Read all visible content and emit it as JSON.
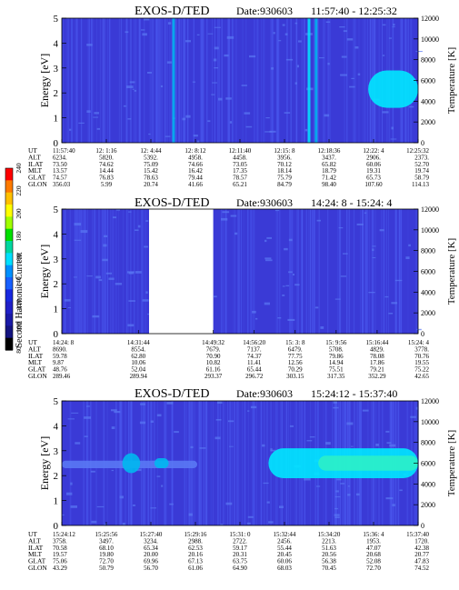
{
  "colorbar": {
    "label": "Second Harmonic Current",
    "ticks": [
      "240",
      "220",
      "200",
      "180",
      "160",
      "140",
      "120",
      "100",
      "80"
    ],
    "range": [
      80,
      240
    ],
    "colors": [
      "#ff0000",
      "#ff7a00",
      "#ffc000",
      "#ffff00",
      "#a0ff00",
      "#00e000",
      "#00d8a0",
      "#00e0ff",
      "#0090ff",
      "#1860ff",
      "#1828e0",
      "#2020c8",
      "#1a1aa8",
      "#141480",
      "#000000"
    ]
  },
  "palette": {
    "background": "#3a3ad6",
    "stripe": "#4a58ee",
    "weak": "#5a78f4",
    "medium": "#00b8f0",
    "strong": "#00e8ff",
    "core": "#2cf0c8",
    "gap": "#ffffff"
  },
  "row_labels": [
    "UT",
    "ALT",
    "ILAT",
    "MLT",
    "GLAT",
    "GLON"
  ],
  "chart_data": [
    {
      "type": "heatmap",
      "title": "EXOS-D/TED",
      "date_text": "Date:930603",
      "time_range_text": "11:57:40 - 12:25:32",
      "ylabel": "Energy [eV]",
      "ylim": [
        0,
        5
      ],
      "yticks": [
        "0",
        "1",
        "2",
        "3",
        "4",
        "5"
      ],
      "y2label": "Temperature [K]",
      "y2lim": [
        0,
        12000
      ],
      "y2ticks": [
        "0",
        "2000",
        "4000",
        "6000",
        "8000",
        "10000",
        "12000"
      ],
      "gap": null,
      "features": [
        {
          "kind": "spike",
          "x": 0.31,
          "strength": "medium"
        },
        {
          "kind": "spike",
          "x": 0.69,
          "strength": "strong"
        },
        {
          "kind": "spike",
          "x": 0.71,
          "strength": "medium"
        },
        {
          "kind": "blob",
          "x0": 0.86,
          "x1": 1.0,
          "e0": 1.4,
          "e1": 2.9,
          "strength": "strong"
        }
      ],
      "columns": [
        {
          "UT": "11:57:40",
          "ALT": "6234.",
          "ILAT": "73.50",
          "MLT": "13.57",
          "GLAT": "74.57",
          "GLON": "356.03"
        },
        {
          "UT": "12: 1:16",
          "ALT": "5820.",
          "ILAT": "74.62",
          "MLT": "14.44",
          "GLAT": "76.83",
          "GLON": "5.99"
        },
        {
          "UT": "12: 4:44",
          "ALT": "5392.",
          "ILAT": "75.09",
          "MLT": "15.42",
          "GLAT": "78.63",
          "GLON": "20.74"
        },
        {
          "UT": "12: 8:12",
          "ALT": "4958.",
          "ILAT": "74.66",
          "MLT": "16.42",
          "GLAT": "79.44",
          "GLON": "41.66"
        },
        {
          "UT": "12:11:40",
          "ALT": "4458.",
          "ILAT": "73.05",
          "MLT": "17.35",
          "GLAT": "78.57",
          "GLON": "65.21"
        },
        {
          "UT": "12:15: 8",
          "ALT": "3956.",
          "ILAT": "70.12",
          "MLT": "18.14",
          "GLAT": "75.79",
          "GLON": "84.79"
        },
        {
          "UT": "12:18:36",
          "ALT": "3437.",
          "ILAT": "65.82",
          "MLT": "18.79",
          "GLAT": "71.42",
          "GLON": "98.40"
        },
        {
          "UT": "12:22: 4",
          "ALT": "2906.",
          "ILAT": "60.06",
          "MLT": "19.31",
          "GLAT": "65.73",
          "GLON": "107.60"
        },
        {
          "UT": "12:25:32",
          "ALT": "2373.",
          "ILAT": "52.70",
          "MLT": "19.74",
          "GLAT": "58.79",
          "GLON": "114.13"
        }
      ]
    },
    {
      "type": "heatmap",
      "title": "EXOS-D/TED",
      "date_text": "Date:930603",
      "time_range_text": "14:24: 8 - 15:24: 4",
      "ylabel": "Energy [eV]",
      "ylim": [
        0,
        5
      ],
      "yticks": [
        "0",
        "1",
        "2",
        "3",
        "4",
        "5"
      ],
      "y2label": "Temperature [K]",
      "y2lim": [
        0,
        12000
      ],
      "y2ticks": [
        "0",
        "2000",
        "4000",
        "6000",
        "8000",
        "10000",
        "12000"
      ],
      "gap": {
        "x0": 0.245,
        "x1": 0.425
      },
      "features": [],
      "columns": [
        {
          "UT": "14:24: 8",
          "ALT": "8690.",
          "ILAT": "59.78",
          "MLT": "9.87",
          "GLAT": "48.76",
          "GLON": "289.46"
        },
        {
          "UT": "14:31:44",
          "ALT": "8554.",
          "ILAT": "62.80",
          "MLT": "10.06",
          "GLAT": "52.04",
          "GLON": "289.94"
        },
        {
          "UT": "14:49:32",
          "ALT": "7679.",
          "ILAT": "70.90",
          "MLT": "10.82",
          "GLAT": "61.16",
          "GLON": "293.37"
        },
        {
          "UT": "14:56:20",
          "ALT": "7137.",
          "ILAT": "74.37",
          "MLT": "11.41",
          "GLAT": "65.44",
          "GLON": "296.72"
        },
        {
          "UT": "15: 3: 8",
          "ALT": "6479.",
          "ILAT": "77.75",
          "MLT": "12.56",
          "GLAT": "70.29",
          "GLON": "303.15"
        },
        {
          "UT": "15: 9:56",
          "ALT": "5708.",
          "ILAT": "79.86",
          "MLT": "14.94",
          "GLAT": "75.51",
          "GLON": "317.35"
        },
        {
          "UT": "15:16:44",
          "ALT": "4829.",
          "ILAT": "78.08",
          "MLT": "17.86",
          "GLAT": "79.21",
          "GLON": "352.29"
        },
        {
          "UT": "15:24: 4",
          "ALT": "3778.",
          "ILAT": "70.76",
          "MLT": "19.55",
          "GLAT": "75.22",
          "GLON": "42.65"
        }
      ]
    },
    {
      "type": "heatmap",
      "title": "EXOS-D/TED",
      "date_text": "Date:930603",
      "time_range_text": "15:24:12 - 15:37:40",
      "ylabel": "Energy [eV]",
      "ylim": [
        0,
        5
      ],
      "yticks": [
        "0",
        "1",
        "2",
        "3",
        "4",
        "5"
      ],
      "y2label": "Temperature [K]",
      "y2lim": [
        0,
        12000
      ],
      "y2ticks": [
        "0",
        "2000",
        "4000",
        "6000",
        "8000",
        "10000",
        "12000"
      ],
      "gap": null,
      "features": [
        {
          "kind": "band",
          "x0": 0.0,
          "x1": 0.38,
          "e0": 2.3,
          "e1": 2.6,
          "strength": "weak"
        },
        {
          "kind": "blob",
          "x0": 0.17,
          "x1": 0.22,
          "e0": 2.1,
          "e1": 2.9,
          "strength": "medium"
        },
        {
          "kind": "blob",
          "x0": 0.26,
          "x1": 0.3,
          "e0": 2.3,
          "e1": 2.7,
          "strength": "medium"
        },
        {
          "kind": "band",
          "x0": 0.58,
          "x1": 1.0,
          "e0": 1.9,
          "e1": 3.1,
          "strength": "strong"
        },
        {
          "kind": "band",
          "x0": 0.72,
          "x1": 1.0,
          "e0": 2.2,
          "e1": 2.8,
          "strength": "core"
        }
      ],
      "columns": [
        {
          "UT": "15:24:12",
          "ALT": "3758.",
          "ILAT": "70.58",
          "MLT": "19.57",
          "GLAT": "75.06",
          "GLON": "43.29"
        },
        {
          "UT": "15:25:56",
          "ALT": "3497.",
          "ILAT": "68.10",
          "MLT": "19.80",
          "GLAT": "72.70",
          "GLON": "50.79"
        },
        {
          "UT": "15:27:40",
          "ALT": "3234.",
          "ILAT": "65.34",
          "MLT": "20.00",
          "GLAT": "69.96",
          "GLON": "56.70"
        },
        {
          "UT": "15:29:16",
          "ALT": "2988.",
          "ILAT": "62.53",
          "MLT": "20.16",
          "GLAT": "67.13",
          "GLON": "61.06"
        },
        {
          "UT": "15:31: 0",
          "ALT": "2722.",
          "ILAT": "59.17",
          "MLT": "20.31",
          "GLAT": "63.75",
          "GLON": "64.90"
        },
        {
          "UT": "15:32:44",
          "ALT": "2456.",
          "ILAT": "55.44",
          "MLT": "20.45",
          "GLAT": "60.06",
          "GLON": "68.03"
        },
        {
          "UT": "15:34:20",
          "ALT": "2213.",
          "ILAT": "51.63",
          "MLT": "20.56",
          "GLAT": "56.38",
          "GLON": "70.45"
        },
        {
          "UT": "15:36: 4",
          "ALT": "1953.",
          "ILAT": "47.07",
          "MLT": "20.68",
          "GLAT": "52.08",
          "GLON": "72.70"
        },
        {
          "UT": "15:37:40",
          "ALT": "1720.",
          "ILAT": "42.38",
          "MLT": "20.77",
          "GLAT": "47.83",
          "GLON": "74.52"
        }
      ]
    }
  ]
}
